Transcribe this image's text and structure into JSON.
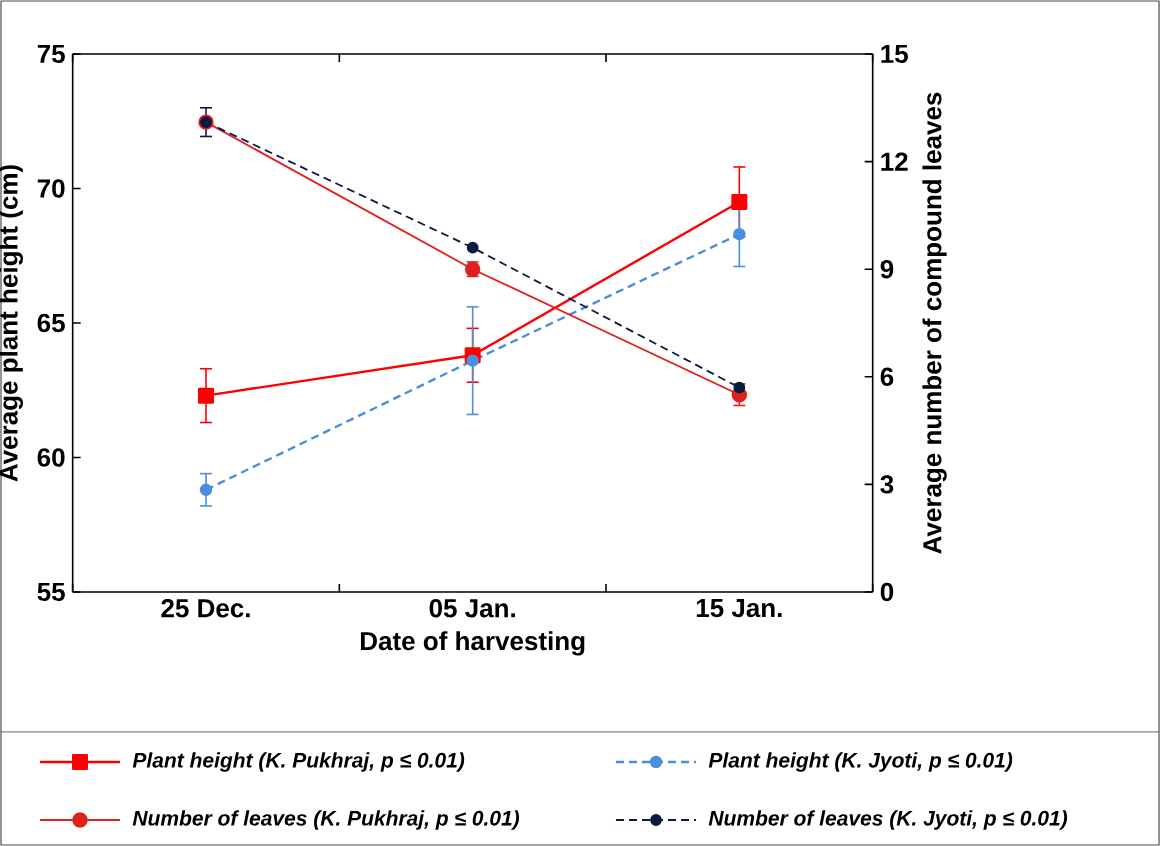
{
  "chart_data": {
    "type": "line",
    "xlabel": "Date of harvesting",
    "ylabel": "Average plant height (cm)",
    "y2label": "Average number of compound leaves",
    "categories": [
      "25 Dec.",
      "05 Jan.",
      "15 Jan."
    ],
    "ylim": [
      55,
      75
    ],
    "yticks": [
      55,
      60,
      65,
      70,
      75
    ],
    "y2lim": [
      0,
      15
    ],
    "y2ticks": [
      0,
      3,
      6,
      9,
      12,
      15
    ],
    "grid": false,
    "legend": "bottom",
    "series": [
      {
        "name": "Plant height (K. Pukhraj, p ≤ 0.01)",
        "color": "#ff0000",
        "marker": "square",
        "line_style": "solid",
        "axis": "y",
        "values": [
          62.3,
          63.8,
          69.5
        ],
        "errors": [
          1.0,
          1.0,
          1.3
        ]
      },
      {
        "name": "Plant height (K. Jyoti, p ≤ 0.01)",
        "color": "#4a8fdc",
        "marker": "circle",
        "line_style": "dashed",
        "axis": "y",
        "values": [
          58.8,
          63.6,
          68.3
        ],
        "errors": [
          0.6,
          2.0,
          1.2
        ]
      },
      {
        "name": "Number of leaves (K. Pukhraj, p ≤ 0.01)",
        "color": "#e0201e",
        "marker": "circle",
        "line_style": "solid",
        "axis": "y2",
        "values": [
          13.1,
          9.0,
          5.5
        ],
        "errors": [
          null,
          0.2,
          0.3
        ]
      },
      {
        "name": "Number of leaves (K. Jyoti, p ≤ 0.01)",
        "color": "#0a1a40",
        "marker": "circle",
        "line_style": "dashed",
        "axis": "y2",
        "values": [
          13.1,
          9.6,
          5.7
        ],
        "errors": [
          0.4,
          null,
          null
        ]
      }
    ]
  }
}
